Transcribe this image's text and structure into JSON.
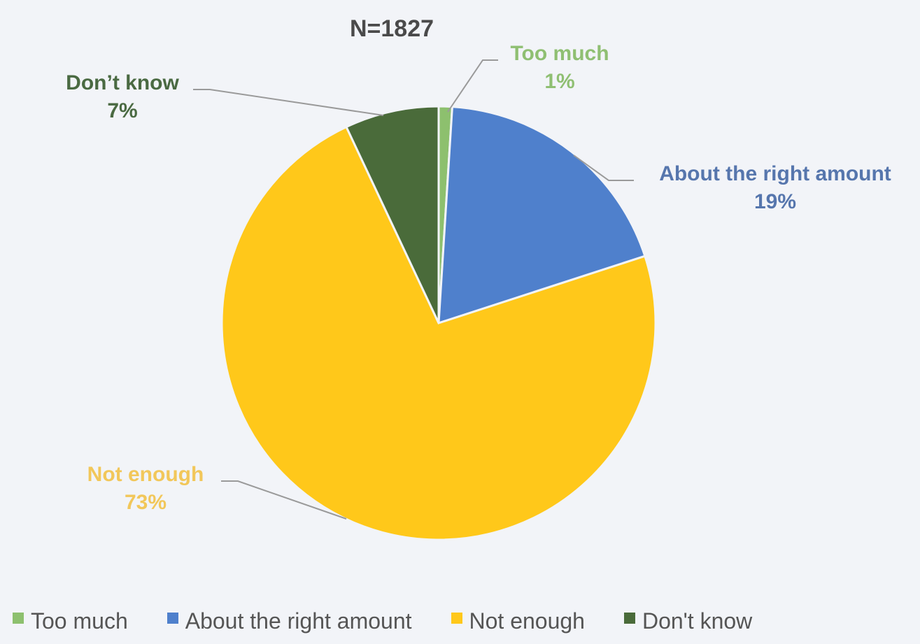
{
  "chart_data": {
    "type": "pie",
    "title": "N=1827",
    "slices": [
      {
        "label": "Too much",
        "value": 1,
        "value_label": "1%",
        "color": "#8dc06e",
        "label_color": "#8fbf72"
      },
      {
        "label": "About the right amount",
        "value": 19,
        "value_label": "19%",
        "color": "#4f80cc",
        "label_color": "#5676ad"
      },
      {
        "label": "Not enough",
        "value": 73,
        "value_label": "73%",
        "color": "#ffc81a",
        "label_color": "#f2c75a"
      },
      {
        "label": "Don’t know",
        "value": 7,
        "value_label": "7%",
        "color": "#4a6b3a",
        "label_color": "#4a6a42"
      }
    ],
    "start_angle": "12 o'clock",
    "direction": "clockwise",
    "legend": {
      "position": "bottom",
      "entries": [
        "Too much",
        "About the right amount",
        "Not enough",
        "Don't know"
      ]
    }
  }
}
